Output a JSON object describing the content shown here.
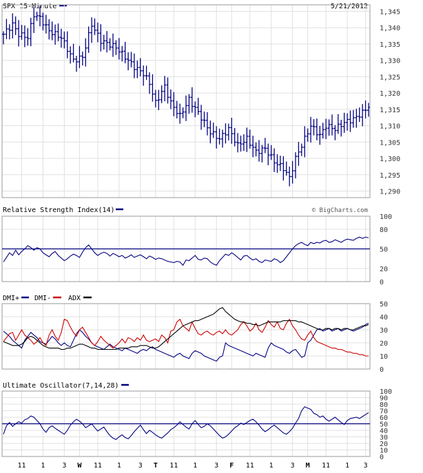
{
  "colors": {
    "navy": "#000080",
    "red": "#cc0000",
    "black": "#000000",
    "grid": "#e0e0e0",
    "frame": "#999999",
    "label": "#333333"
  },
  "header": {
    "title": "SPX 15-Minute",
    "date": "5/21/2012",
    "watermark": "© BigCharts.com"
  },
  "x_axis_labels": [
    {
      "text": "11",
      "bold": false
    },
    {
      "text": "1",
      "bold": false
    },
    {
      "text": "3",
      "bold": false
    },
    {
      "text": "W",
      "bold": true
    },
    {
      "text": "11",
      "bold": false
    },
    {
      "text": "1",
      "bold": false
    },
    {
      "text": "3",
      "bold": false
    },
    {
      "text": "T",
      "bold": true
    },
    {
      "text": "11",
      "bold": false
    },
    {
      "text": "1",
      "bold": false
    },
    {
      "text": "3",
      "bold": false
    },
    {
      "text": "F",
      "bold": true
    },
    {
      "text": "11",
      "bold": false
    },
    {
      "text": "1",
      "bold": false
    },
    {
      "text": "3",
      "bold": false
    },
    {
      "text": "M",
      "bold": true
    },
    {
      "text": "11",
      "bold": false
    },
    {
      "text": "1",
      "bold": false
    },
    {
      "text": "3",
      "bold": false
    }
  ],
  "chart_data": [
    {
      "id": "price",
      "type": "ohlc",
      "title": "SPX 15-Minute",
      "legend": [
        {
          "name": "SPX 15-Minute",
          "color": "#000080"
        }
      ],
      "ylim": [
        1288,
        1347
      ],
      "yticks": [
        1290,
        1295,
        1300,
        1305,
        1310,
        1315,
        1320,
        1325,
        1330,
        1335,
        1340,
        1345
      ],
      "ytick_labels": [
        "1,290",
        "1,295",
        "1,300",
        "1,305",
        "1,310",
        "1,315",
        "1,320",
        "1,325",
        "1,330",
        "1,335",
        "1,340",
        "1,345"
      ],
      "knots": [
        [
          0,
          1338
        ],
        [
          3,
          1341
        ],
        [
          5,
          1338
        ],
        [
          8,
          1337
        ],
        [
          10,
          1344
        ],
        [
          12,
          1343
        ],
        [
          15,
          1339
        ],
        [
          19,
          1337
        ],
        [
          23,
          1330
        ],
        [
          26,
          1331
        ],
        [
          29,
          1341
        ],
        [
          32,
          1336
        ],
        [
          37,
          1334
        ],
        [
          40,
          1331
        ],
        [
          43,
          1328
        ],
        [
          46,
          1326
        ],
        [
          48,
          1323
        ],
        [
          50,
          1317
        ],
        [
          53,
          1322
        ],
        [
          55,
          1317
        ],
        [
          58,
          1313
        ],
        [
          61,
          1318
        ],
        [
          64,
          1314
        ],
        [
          68,
          1308
        ],
        [
          71,
          1306
        ],
        [
          74,
          1309
        ],
        [
          77,
          1304
        ],
        [
          80,
          1306
        ],
        [
          83,
          1302
        ],
        [
          86,
          1303
        ],
        [
          89,
          1299
        ],
        [
          92,
          1297
        ],
        [
          94,
          1294
        ],
        [
          96,
          1300
        ],
        [
          98,
          1304
        ],
        [
          101,
          1310
        ],
        [
          104,
          1307
        ],
        [
          106,
          1310
        ],
        [
          109,
          1309
        ],
        [
          112,
          1311
        ],
        [
          115,
          1312
        ],
        [
          118,
          1314
        ],
        [
          120,
          1316
        ]
      ],
      "n_bars": 121
    },
    {
      "id": "rsi",
      "type": "line",
      "title": "Relative Strength Index(14)",
      "legend": [
        {
          "name": "Relative Strength Index(14)",
          "color": "#000080"
        }
      ],
      "ylim": [
        0,
        100
      ],
      "yticks": [
        0,
        20,
        50,
        80,
        100
      ],
      "ytick_labels": [
        "0",
        "20",
        "50",
        "80",
        "100"
      ],
      "reference_line": 50,
      "series": [
        {
          "name": "Relative Strength Index(14)",
          "color": "#000080",
          "values": [
            30,
            37,
            44,
            40,
            48,
            41,
            46,
            50,
            55,
            52,
            48,
            52,
            50,
            44,
            41,
            38,
            43,
            46,
            40,
            36,
            32,
            35,
            39,
            42,
            40,
            37,
            45,
            52,
            56,
            50,
            44,
            40,
            43,
            45,
            43,
            39,
            43,
            41,
            38,
            40,
            36,
            38,
            41,
            37,
            39,
            41,
            38,
            35,
            39,
            37,
            34,
            36,
            35,
            33,
            31,
            30,
            29,
            31,
            30,
            25,
            33,
            32,
            36,
            40,
            34,
            33,
            36,
            35,
            30,
            27,
            25,
            32,
            37,
            42,
            40,
            44,
            41,
            37,
            33,
            39,
            40,
            36,
            33,
            35,
            31,
            29,
            33,
            32,
            31,
            35,
            33,
            29,
            32,
            38,
            44,
            50,
            55,
            58,
            60,
            57,
            55,
            60,
            58,
            60,
            59,
            62,
            63,
            60,
            61,
            64,
            62,
            60,
            63,
            65,
            64,
            63,
            66,
            68,
            66,
            68,
            67
          ]
        }
      ]
    },
    {
      "id": "dmi",
      "type": "line",
      "title": "DMI+ DMI- ADX",
      "legend": [
        {
          "name": "DMI+",
          "color": "#000080"
        },
        {
          "name": "DMI-",
          "color": "#cc0000"
        },
        {
          "name": "ADX",
          "color": "#000000"
        }
      ],
      "ylim": [
        0,
        50
      ],
      "yticks": [
        0,
        10,
        20,
        30,
        40,
        50
      ],
      "ytick_labels": [
        "0",
        "10",
        "20",
        "30",
        "40",
        "50"
      ],
      "series": [
        {
          "name": "DMI+",
          "color": "#000080",
          "values": [
            29,
            27,
            25,
            22,
            20,
            18,
            16,
            22,
            25,
            28,
            26,
            24,
            21,
            20,
            19,
            22,
            25,
            23,
            20,
            18,
            20,
            18,
            17,
            22,
            27,
            30,
            28,
            25,
            23,
            20,
            18,
            17,
            16,
            15,
            17,
            19,
            17,
            16,
            15,
            14,
            16,
            15,
            14,
            13,
            12,
            14,
            15,
            14,
            16,
            17,
            15,
            14,
            13,
            12,
            11,
            10,
            9,
            11,
            12,
            10,
            9,
            8,
            12,
            14,
            13,
            12,
            10,
            9,
            8,
            7,
            6,
            9,
            10,
            20,
            18,
            17,
            16,
            15,
            14,
            13,
            12,
            11,
            10,
            12,
            11,
            10,
            9,
            16,
            20,
            18,
            17,
            16,
            15,
            13,
            12,
            14,
            15,
            12,
            9,
            10,
            20,
            22,
            26,
            30,
            31,
            29,
            30,
            31,
            29,
            30,
            31,
            29,
            30,
            31,
            30,
            29,
            30,
            31,
            32,
            34,
            35
          ]
        },
        {
          "name": "DMI-",
          "color": "#cc0000",
          "values": [
            21,
            24,
            27,
            28,
            22,
            26,
            30,
            26,
            24,
            22,
            19,
            21,
            24,
            20,
            18,
            26,
            30,
            25,
            22,
            28,
            38,
            37,
            32,
            28,
            25,
            30,
            32,
            28,
            24,
            20,
            18,
            21,
            25,
            22,
            20,
            18,
            16,
            18,
            20,
            23,
            20,
            24,
            23,
            21,
            24,
            22,
            26,
            22,
            21,
            22,
            23,
            21,
            26,
            24,
            20,
            29,
            30,
            36,
            38,
            33,
            31,
            29,
            36,
            31,
            27,
            26,
            28,
            29,
            27,
            26,
            28,
            29,
            27,
            30,
            27,
            26,
            28,
            30,
            34,
            36,
            33,
            29,
            31,
            35,
            30,
            28,
            32,
            37,
            34,
            32,
            36,
            31,
            30,
            35,
            38,
            33,
            30,
            26,
            23,
            22,
            26,
            29,
            24,
            21,
            20,
            19,
            18,
            17,
            16,
            16,
            15,
            15,
            14,
            13,
            13,
            12,
            12,
            11,
            11,
            10,
            10
          ]
        },
        {
          "name": "ADX",
          "color": "#000000",
          "values": [
            21,
            20,
            19,
            18,
            18,
            18,
            19,
            21,
            24,
            25,
            24,
            22,
            20,
            18,
            17,
            16,
            16,
            16,
            16,
            15,
            15,
            16,
            16,
            17,
            18,
            19,
            19,
            18,
            17,
            16,
            16,
            15,
            15,
            15,
            15,
            15,
            15,
            15,
            16,
            16,
            16,
            16,
            17,
            17,
            17,
            18,
            18,
            18,
            17,
            16,
            16,
            17,
            19,
            21,
            23,
            25,
            27,
            29,
            31,
            33,
            34,
            35,
            36,
            37,
            37,
            38,
            39,
            40,
            41,
            42,
            44,
            46,
            47,
            44,
            42,
            40,
            38,
            37,
            36,
            36,
            35,
            35,
            34,
            34,
            33,
            34,
            35,
            36,
            36,
            36,
            36,
            36,
            37,
            37,
            37,
            37,
            37,
            36,
            36,
            35,
            34,
            33,
            32,
            31,
            30,
            30,
            31,
            31,
            30,
            31,
            31,
            30,
            31,
            31,
            30,
            30,
            31,
            32,
            33,
            33,
            34
          ]
        }
      ]
    },
    {
      "id": "uo",
      "type": "line",
      "title": "Ultimate Oscillator(7,14,28)",
      "legend": [
        {
          "name": "Ultimate Oscillator(7,14,28)",
          "color": "#000080"
        }
      ],
      "ylim": [
        0,
        100
      ],
      "yticks": [
        0,
        10,
        20,
        30,
        40,
        50,
        60,
        70,
        80,
        90,
        100
      ],
      "ytick_labels": [
        "0",
        "10",
        "20",
        "30",
        "40",
        "50",
        "60",
        "70",
        "80",
        "90",
        "100"
      ],
      "reference_line": 50,
      "series": [
        {
          "name": "Ultimate Oscillator(7,14,28)",
          "color": "#000080",
          "values": [
            34,
            47,
            52,
            46,
            50,
            53,
            51,
            56,
            58,
            62,
            60,
            55,
            50,
            42,
            37,
            44,
            47,
            43,
            40,
            37,
            34,
            40,
            48,
            53,
            57,
            54,
            50,
            44,
            47,
            50,
            44,
            39,
            42,
            45,
            38,
            32,
            28,
            26,
            30,
            33,
            29,
            27,
            32,
            38,
            43,
            48,
            41,
            35,
            40,
            37,
            33,
            30,
            28,
            32,
            36,
            41,
            44,
            48,
            53,
            49,
            45,
            42,
            50,
            55,
            49,
            44,
            46,
            50,
            47,
            42,
            37,
            32,
            28,
            30,
            34,
            39,
            44,
            47,
            51,
            49,
            52,
            55,
            57,
            53,
            48,
            42,
            38,
            41,
            45,
            48,
            44,
            40,
            36,
            34,
            38,
            43,
            51,
            58,
            70,
            76,
            74,
            72,
            66,
            64,
            60,
            62,
            57,
            54,
            57,
            60,
            56,
            52,
            49,
            55,
            58,
            59,
            60,
            58,
            61,
            64,
            67
          ]
        }
      ]
    }
  ]
}
